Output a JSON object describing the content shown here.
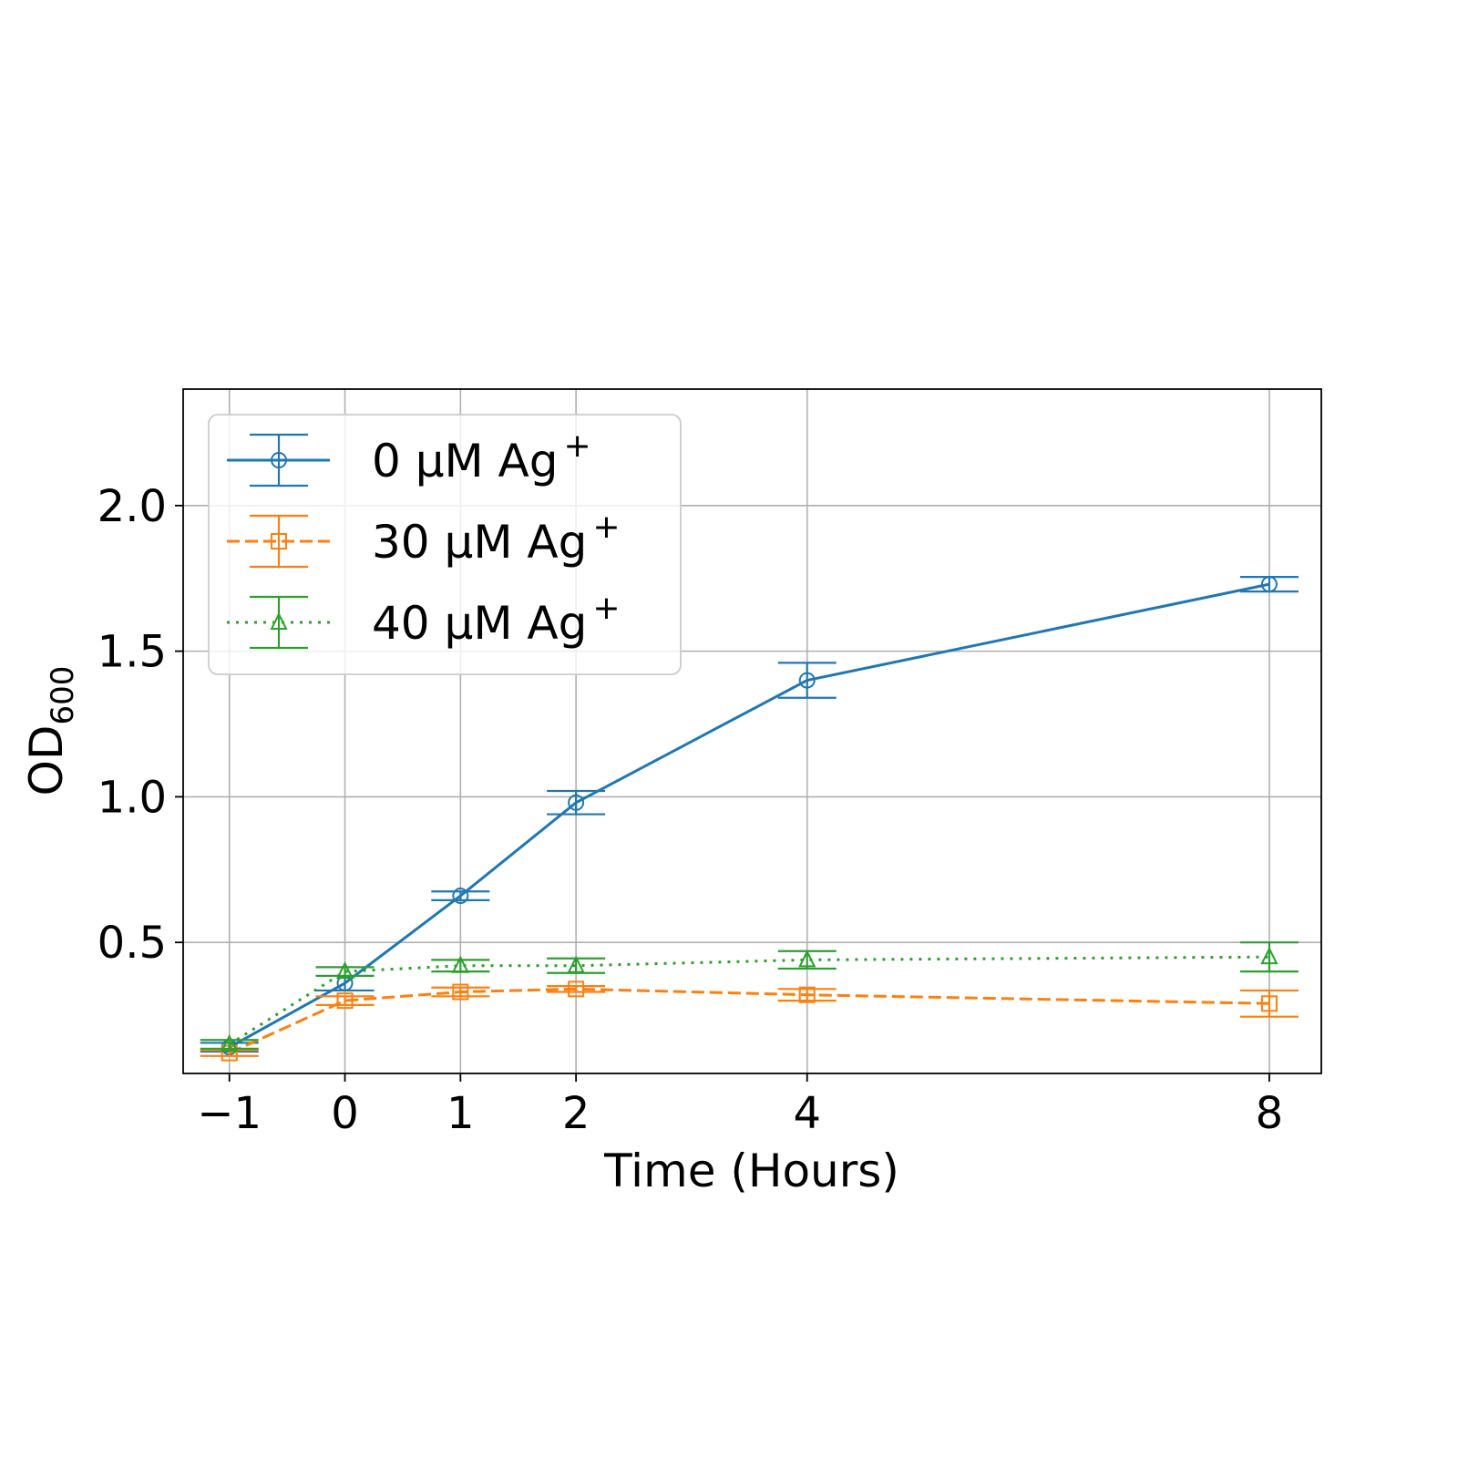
{
  "chart_data": {
    "type": "line",
    "title": "",
    "xlabel": "Time (Hours)",
    "ylabel": "OD",
    "ylabel_subscript": "600",
    "x": [
      -1,
      0,
      1,
      2,
      4,
      8
    ],
    "x_tick_labels": [
      "−1",
      "0",
      "1",
      "2",
      "4",
      "8"
    ],
    "y_ticks": [
      0.5,
      1.0,
      1.5,
      2.0
    ],
    "y_tick_labels": [
      "0.5",
      "1.0",
      "1.5",
      "2.0"
    ],
    "xlim": [
      -1.4,
      8.45
    ],
    "ylim": [
      0.05,
      2.4
    ],
    "grid": true,
    "legend_position": "top-left",
    "series": [
      {
        "name": "0 μM Ag",
        "name_superscript": "+",
        "color": "#1f77b4",
        "line_style": "solid",
        "marker": "circle",
        "values": [
          0.14,
          0.36,
          0.66,
          0.98,
          1.4,
          1.73
        ],
        "errors": [
          0.015,
          0.025,
          0.015,
          0.04,
          0.06,
          0.025
        ]
      },
      {
        "name": "30 μM Ag",
        "name_superscript": "+",
        "color": "#ff7f0e",
        "line_style": "dashed",
        "marker": "square",
        "values": [
          0.12,
          0.3,
          0.33,
          0.34,
          0.32,
          0.29
        ],
        "errors": [
          0.01,
          0.015,
          0.015,
          0.01,
          0.02,
          0.045
        ]
      },
      {
        "name": "40 μM Ag",
        "name_superscript": "+",
        "color": "#2ca02c",
        "line_style": "dotted",
        "marker": "triangle",
        "values": [
          0.15,
          0.4,
          0.42,
          0.42,
          0.44,
          0.45
        ],
        "errors": [
          0.015,
          0.015,
          0.02,
          0.025,
          0.03,
          0.05
        ]
      }
    ]
  }
}
